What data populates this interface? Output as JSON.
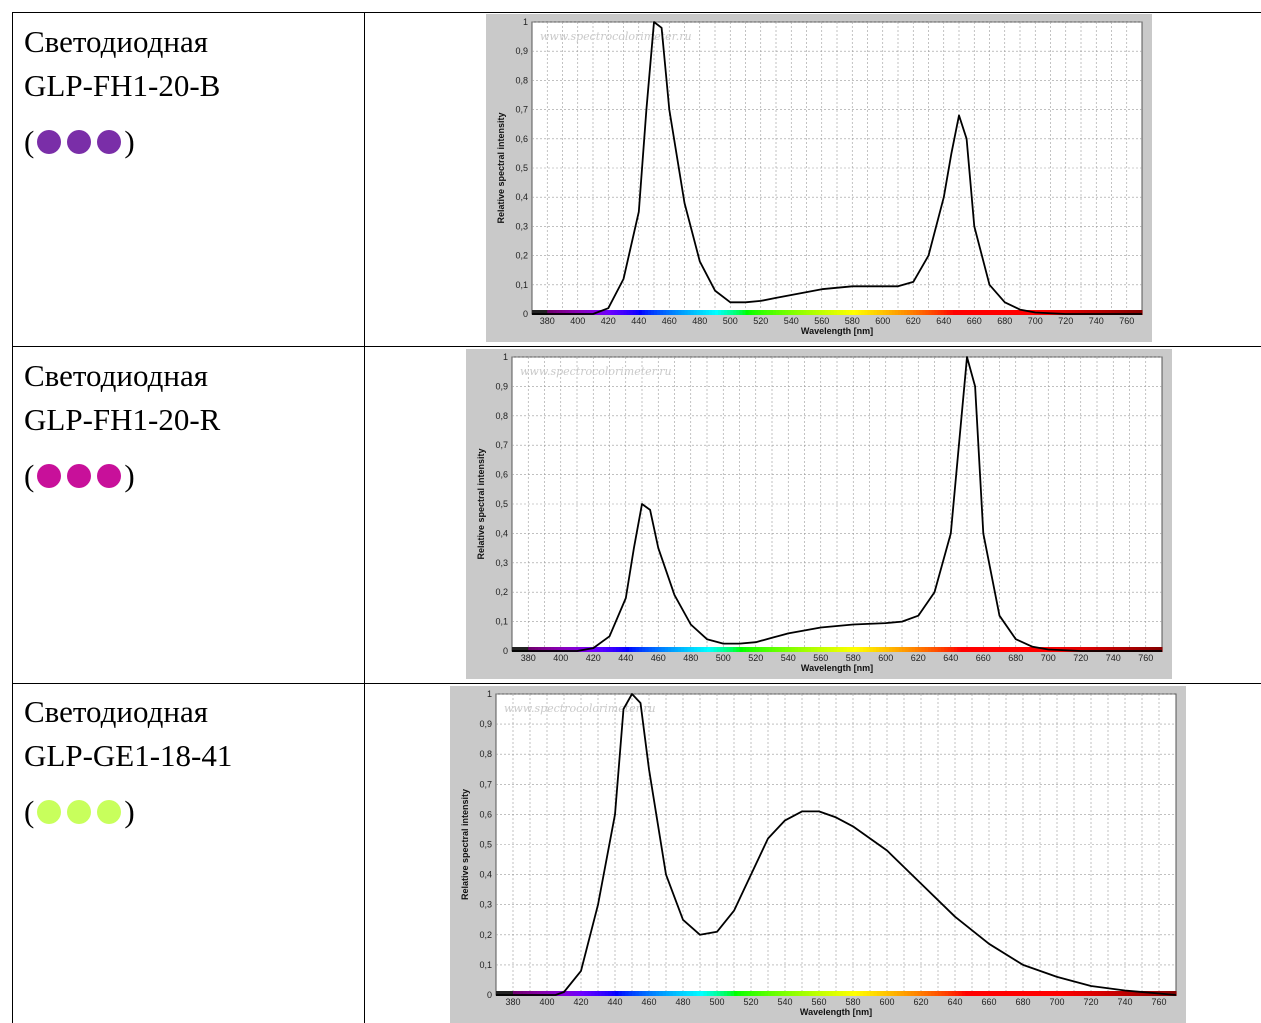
{
  "rows": [
    {
      "line1": "Светодиодная",
      "line2": "GLP-FH1-20-B",
      "open_paren": "(",
      "close_paren": ")",
      "dot_color": "#7a2ea8"
    },
    {
      "line1": "Светодиодная",
      "line2": "GLP-FH1-20-R",
      "open_paren": "(",
      "close_paren": ")",
      "dot_color": "#c8109a"
    },
    {
      "line1": "Светодиодная",
      "line2": "GLP-GE1-18-41",
      "open_paren": "(",
      "close_paren": ")",
      "dot_color": "#c8ff5c"
    }
  ],
  "chart_data": [
    {
      "type": "line",
      "watermark": "www.spectrocolorimeter.ru",
      "xlabel": "Wavelength [nm]",
      "ylabel": "Relative spectral intensity",
      "xlim": [
        370,
        770
      ],
      "ylim": [
        0,
        1
      ],
      "grid": true,
      "x_ticks": [
        "380",
        "400",
        "420",
        "440",
        "460",
        "480",
        "500",
        "520",
        "540",
        "560",
        "580",
        "600",
        "620",
        "640",
        "660",
        "680",
        "700",
        "720",
        "740",
        "760"
      ],
      "y_ticks": [
        "0",
        "0,1",
        "0,2",
        "0,3",
        "0,4",
        "0,5",
        "0,6",
        "0,7",
        "0,8",
        "0,9",
        "1"
      ],
      "series": [
        {
          "x": [
            370,
            410,
            420,
            430,
            440,
            445,
            450,
            455,
            460,
            470,
            480,
            490,
            500,
            510,
            520,
            530,
            540,
            560,
            580,
            600,
            610,
            620,
            630,
            640,
            645,
            650,
            655,
            660,
            670,
            680,
            690,
            700,
            720,
            770
          ],
          "y": [
            0,
            0,
            0.02,
            0.12,
            0.35,
            0.7,
            1.0,
            0.98,
            0.7,
            0.38,
            0.18,
            0.08,
            0.04,
            0.04,
            0.045,
            0.055,
            0.065,
            0.085,
            0.095,
            0.095,
            0.095,
            0.11,
            0.2,
            0.4,
            0.55,
            0.68,
            0.6,
            0.3,
            0.1,
            0.04,
            0.015,
            0.005,
            0,
            0
          ]
        }
      ]
    },
    {
      "type": "line",
      "watermark": "www.spectrocolorimeter.ru",
      "xlabel": "Wavelength [nm]",
      "ylabel": "Relative spectral intensity",
      "xlim": [
        370,
        770
      ],
      "ylim": [
        0,
        1
      ],
      "grid": true,
      "x_ticks": [
        "380",
        "400",
        "420",
        "440",
        "460",
        "480",
        "500",
        "520",
        "540",
        "560",
        "580",
        "600",
        "620",
        "640",
        "660",
        "680",
        "700",
        "720",
        "740",
        "760"
      ],
      "y_ticks": [
        "0",
        "0,1",
        "0,2",
        "0,3",
        "0,4",
        "0,5",
        "0,6",
        "0,7",
        "0,8",
        "0,9",
        "1"
      ],
      "series": [
        {
          "x": [
            370,
            410,
            420,
            430,
            440,
            445,
            450,
            455,
            460,
            470,
            480,
            490,
            500,
            510,
            520,
            530,
            540,
            560,
            580,
            600,
            610,
            620,
            630,
            640,
            645,
            650,
            655,
            660,
            670,
            680,
            690,
            700,
            720,
            770
          ],
          "y": [
            0,
            0,
            0.01,
            0.05,
            0.18,
            0.35,
            0.5,
            0.48,
            0.35,
            0.19,
            0.09,
            0.04,
            0.025,
            0.025,
            0.03,
            0.045,
            0.06,
            0.08,
            0.09,
            0.095,
            0.1,
            0.12,
            0.2,
            0.4,
            0.7,
            1.0,
            0.9,
            0.4,
            0.12,
            0.04,
            0.015,
            0.005,
            0,
            0
          ]
        }
      ]
    },
    {
      "type": "line",
      "watermark": "www.spectrocolorimeter.ru",
      "xlabel": "Wavelength [nm]",
      "ylabel": "Relative spectral intensity",
      "xlim": [
        370,
        770
      ],
      "ylim": [
        0,
        1
      ],
      "grid": true,
      "x_ticks": [
        "380",
        "400",
        "420",
        "440",
        "460",
        "480",
        "500",
        "520",
        "540",
        "560",
        "580",
        "600",
        "620",
        "640",
        "660",
        "680",
        "700",
        "720",
        "740",
        "760"
      ],
      "y_ticks": [
        "0",
        "0,1",
        "0,2",
        "0,3",
        "0,4",
        "0,5",
        "0,6",
        "0,7",
        "0,8",
        "0,9",
        "1"
      ],
      "series": [
        {
          "x": [
            370,
            405,
            410,
            420,
            430,
            440,
            445,
            450,
            455,
            460,
            470,
            480,
            490,
            500,
            510,
            520,
            530,
            540,
            550,
            560,
            570,
            580,
            600,
            620,
            640,
            660,
            680,
            700,
            720,
            740,
            760,
            770
          ],
          "y": [
            0,
            0,
            0.01,
            0.08,
            0.3,
            0.6,
            0.95,
            1.0,
            0.97,
            0.75,
            0.4,
            0.25,
            0.2,
            0.21,
            0.28,
            0.4,
            0.52,
            0.58,
            0.61,
            0.61,
            0.59,
            0.56,
            0.48,
            0.37,
            0.26,
            0.17,
            0.1,
            0.06,
            0.03,
            0.015,
            0.005,
            0
          ]
        }
      ]
    }
  ]
}
